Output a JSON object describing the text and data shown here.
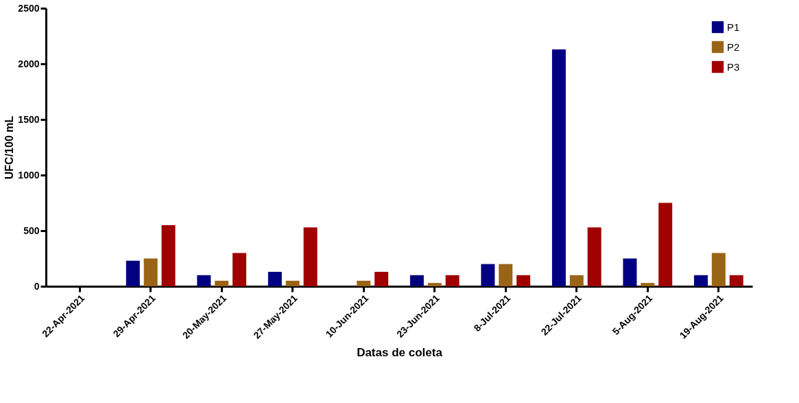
{
  "chart_data": {
    "type": "bar",
    "xlabel": "Datas de coleta",
    "ylabel": "UFC/100 mL",
    "categories": [
      "22-Apr-2021",
      "29-Apr-2021",
      "20-May-2021",
      "27-May-2021",
      "10-Jun-2021",
      "23-Jun-2021",
      "8-Jul-2021",
      "22-Jul-2021",
      "5-Aug-2021",
      "19-Aug-2021"
    ],
    "series": [
      {
        "name": "P1",
        "color": "#000080",
        "values": [
          0,
          230,
          100,
          130,
          0,
          100,
          200,
          2130,
          250,
          100
        ]
      },
      {
        "name": "P2",
        "color": "#996515",
        "values": [
          0,
          250,
          50,
          50,
          50,
          30,
          200,
          100,
          30,
          300
        ]
      },
      {
        "name": "P3",
        "color": "#a00000",
        "values": [
          0,
          550,
          300,
          530,
          130,
          100,
          100,
          530,
          750,
          100
        ]
      }
    ],
    "ylim": [
      0,
      2500
    ],
    "yticks": [
      0,
      500,
      1000,
      1500,
      2000,
      2500
    ],
    "grid": false,
    "legend": "top right"
  }
}
